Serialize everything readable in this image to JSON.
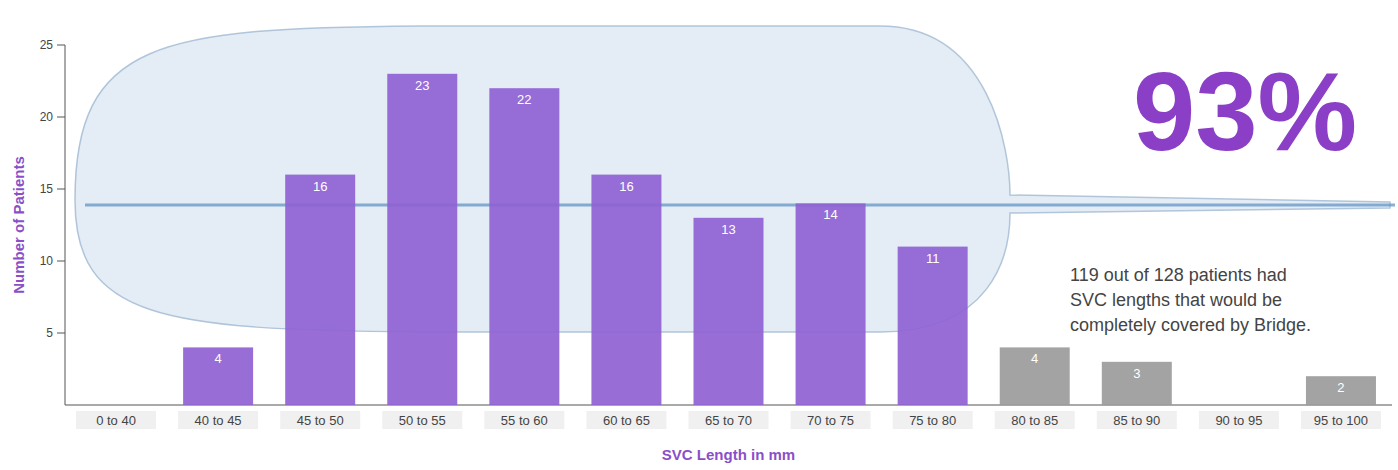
{
  "chart_data": {
    "type": "bar",
    "x_label": "SVC Length in mm",
    "y_label": "Number of Patients",
    "categories": [
      "0 to 40",
      "40 to 45",
      "45 to 50",
      "50 to 55",
      "55 to 60",
      "60 to 65",
      "65 to 70",
      "70 to 75",
      "75 to 80",
      "80 to 85",
      "85 to 90",
      "90 to 95",
      "95 to 100"
    ],
    "values": [
      0,
      4,
      16,
      23,
      22,
      16,
      13,
      14,
      11,
      4,
      3,
      0,
      2
    ],
    "colors": [
      "#8f62d2",
      "#8f62d2",
      "#8f62d2",
      "#8f62d2",
      "#8f62d2",
      "#8f62d2",
      "#8f62d2",
      "#8f62d2",
      "#8f62d2",
      "#9b9b9b",
      "#9b9b9b",
      "#9b9b9b",
      "#9b9b9b"
    ],
    "ylim": [
      0,
      25
    ],
    "yticks": [
      5,
      10,
      15,
      20,
      25
    ],
    "grid": false,
    "data_labels": true,
    "annotation": {
      "headline": "93%",
      "text": [
        "119 out of 128 patients had",
        "SVC lengths that would be",
        "completely covered by Bridge."
      ]
    }
  }
}
